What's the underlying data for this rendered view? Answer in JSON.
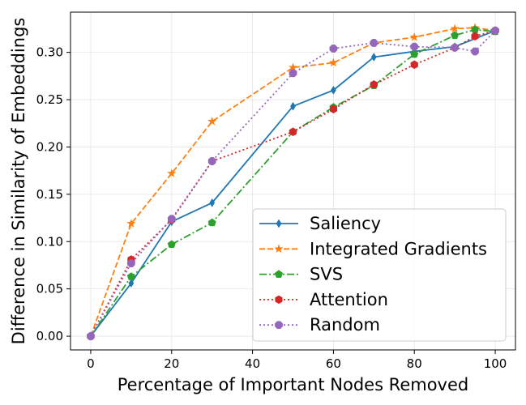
{
  "chart_data": {
    "type": "line",
    "title": "",
    "xlabel": "Percentage of Important Nodes Removed",
    "ylabel": "Difference in Similarity of Embeddings",
    "xlim": [
      -5,
      105
    ],
    "ylim": [
      -0.0145,
      0.3425
    ],
    "xticks": [
      0,
      20,
      40,
      60,
      80,
      100
    ],
    "xtick_labels": [
      "0",
      "20",
      "40",
      "60",
      "80",
      "100"
    ],
    "yticks": [
      0.0,
      0.05,
      0.1,
      0.15,
      0.2,
      0.25,
      0.3
    ],
    "ytick_labels": [
      "0.00",
      "0.05",
      "0.10",
      "0.15",
      "0.20",
      "0.25",
      "0.30"
    ],
    "grid": true,
    "legend_position": "lower-right",
    "series": [
      {
        "name": "Saliency",
        "color": "#1f77b4",
        "linestyle": "solid",
        "marker": "diamond",
        "x": [
          0,
          10,
          20,
          30,
          50,
          60,
          70,
          80,
          90,
          100
        ],
        "y": [
          0.0,
          0.056,
          0.121,
          0.141,
          0.243,
          0.26,
          0.295,
          0.301,
          0.306,
          0.323
        ]
      },
      {
        "name": "Integrated Gradients",
        "color": "#ff7f0e",
        "linestyle": "dashed",
        "marker": "star",
        "x": [
          0,
          10,
          20,
          30,
          50,
          60,
          70,
          80,
          90,
          95,
          100
        ],
        "y": [
          0.0,
          0.119,
          0.172,
          0.227,
          0.284,
          0.289,
          0.31,
          0.316,
          0.325,
          0.326,
          0.323
        ]
      },
      {
        "name": "SVS",
        "color": "#2ca02c",
        "linestyle": "dashdot",
        "marker": "pentagon",
        "x": [
          0,
          10,
          20,
          30,
          50,
          60,
          70,
          80,
          90,
          95,
          100
        ],
        "y": [
          0.0,
          0.063,
          0.097,
          0.12,
          0.216,
          0.242,
          0.265,
          0.298,
          0.318,
          0.324,
          0.322
        ]
      },
      {
        "name": "Attention",
        "color": "#d62728",
        "linestyle": "dotted",
        "marker": "hexagon",
        "x": [
          0,
          10,
          20,
          30,
          50,
          60,
          70,
          80,
          90,
          95,
          100
        ],
        "y": [
          0.0,
          0.081,
          0.123,
          0.185,
          0.216,
          0.24,
          0.266,
          0.287,
          0.305,
          0.317,
          0.323
        ]
      },
      {
        "name": "Random",
        "color": "#9467bd",
        "linestyle": "dotted",
        "marker": "octagon",
        "x": [
          0,
          10,
          20,
          30,
          50,
          60,
          70,
          80,
          90,
          95,
          100
        ],
        "y": [
          0.0,
          0.077,
          0.124,
          0.185,
          0.278,
          0.304,
          0.31,
          0.306,
          0.305,
          0.301,
          0.323
        ]
      }
    ]
  }
}
